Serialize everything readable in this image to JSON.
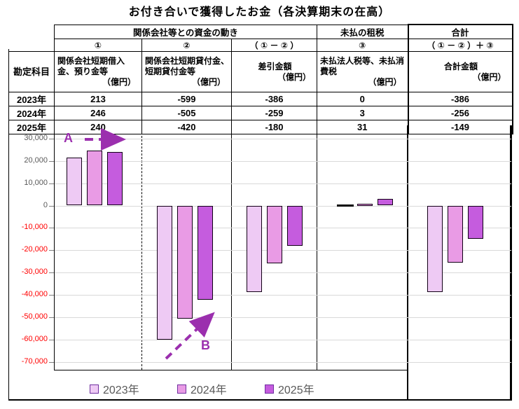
{
  "title": "お付き合いで獲得したお金（各決算期末の在高）",
  "table": {
    "corner_label": "勘定科目",
    "group_headers": {
      "funds_flow": "関係会社等との資金の動き",
      "unpaid_tax": "未払の租税",
      "total": "合計"
    },
    "sub_headers": {
      "c1": "①",
      "c2": "②",
      "c3": "（ ① － ② ）",
      "c4": "③",
      "c5": "（ ① － ② ）＋ ③"
    },
    "columns": [
      {
        "name": "関係会社短期借入金、預り金等",
        "unit": "（億円）"
      },
      {
        "name": "関係会社短期貸付金、短期貸付金等",
        "unit": "（億円）"
      },
      {
        "name": "差引金額",
        "unit": "（億円）"
      },
      {
        "name": "未払法人税等、未払消費税",
        "unit": "（億円）"
      },
      {
        "name": "合計金額",
        "unit": "（億円）"
      }
    ],
    "rows": [
      {
        "label": "2023年",
        "values": [
          "213",
          "-599",
          "-386",
          "0",
          "-386"
        ]
      },
      {
        "label": "2024年",
        "values": [
          "246",
          "-505",
          "-259",
          "3",
          "-256"
        ]
      },
      {
        "label": "2025年",
        "values": [
          "240",
          "-420",
          "-180",
          "31",
          "-149"
        ]
      }
    ]
  },
  "chart_data": {
    "type": "bar",
    "title": "",
    "categories": [
      "① 関係会社短期借入金、預り金等",
      "② 関係会社短期貸付金、短期貸付金等",
      "差引金額（①－②）",
      "③ 未払法人税等、未払消費税",
      "合計金額（①－②）＋③"
    ],
    "series": [
      {
        "name": "2023年",
        "color": "#EECAF4",
        "values": [
          21300,
          -59900,
          -38600,
          0,
          -38600
        ]
      },
      {
        "name": "2024年",
        "color": "#E99BE5",
        "values": [
          24600,
          -50500,
          -25900,
          300,
          -25600
        ]
      },
      {
        "name": "2025年",
        "color": "#C55CDE",
        "values": [
          24000,
          -42000,
          -18000,
          3100,
          -14900
        ]
      }
    ],
    "ylabel": "",
    "ylim": [
      -70000,
      30000
    ],
    "ytick_step": 10000,
    "grid": true,
    "legend_position": "bottom",
    "annotations": [
      {
        "label": "A",
        "type": "dashed-arrow-right"
      },
      {
        "label": "B",
        "type": "dashed-arrow-up-right"
      }
    ]
  },
  "colors": {
    "negative_text": "#FF0000",
    "gridline": "#D9D9D9",
    "axis_text": "#595959",
    "annotation_purple": "#9B2FAE",
    "legend_swatch_border": "#7030A0",
    "bar_border": "#120016"
  }
}
